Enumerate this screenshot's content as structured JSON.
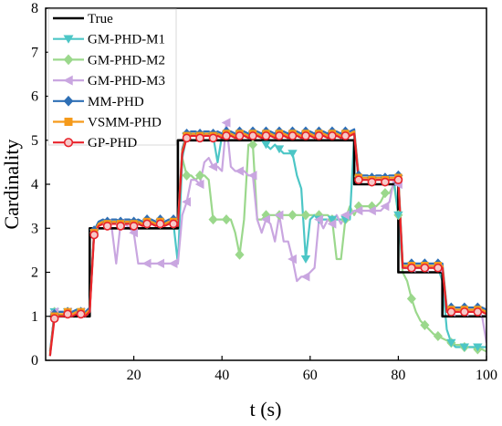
{
  "chart_data": {
    "type": "line",
    "xlabel": "t (s)",
    "ylabel": "Cardinality",
    "xlim": [
      0,
      100
    ],
    "ylim": [
      0,
      8
    ],
    "xticks": [
      20,
      40,
      60,
      80,
      100
    ],
    "yticks": [
      0,
      1,
      2,
      3,
      4,
      5,
      6,
      7,
      8
    ],
    "legend_position": "top-left",
    "series": [
      {
        "name": "True",
        "color": "#000000",
        "marker": "none",
        "x": [
          1,
          10,
          10,
          30,
          30,
          70,
          70,
          80,
          80,
          90,
          90,
          100
        ],
        "y": [
          1,
          1,
          3,
          3,
          5,
          5,
          4,
          4,
          2,
          2,
          1,
          1
        ]
      },
      {
        "name": "GM-PHD-M1",
        "color": "#4cc6c6",
        "marker": "triangle-down",
        "x": [
          1,
          2,
          3,
          4,
          5,
          6,
          7,
          8,
          9,
          10,
          11,
          12,
          13,
          14,
          15,
          16,
          17,
          18,
          19,
          20,
          21,
          22,
          23,
          24,
          25,
          26,
          27,
          28,
          29,
          30,
          31,
          32,
          33,
          34,
          35,
          36,
          37,
          38,
          39,
          40,
          41,
          42,
          43,
          44,
          45,
          46,
          47,
          48,
          49,
          50,
          51,
          52,
          53,
          54,
          55,
          56,
          57,
          58,
          59,
          60,
          61,
          62,
          63,
          64,
          65,
          66,
          67,
          68,
          69,
          70,
          71,
          72,
          73,
          74,
          75,
          76,
          77,
          78,
          79,
          80,
          81,
          82,
          83,
          84,
          85,
          86,
          87,
          88,
          89,
          90,
          91,
          92,
          93,
          94,
          95,
          96,
          97,
          98,
          99,
          100
        ],
        "y": [
          0.1,
          1.1,
          1.1,
          1.1,
          1.1,
          1.1,
          1.1,
          1.1,
          1.1,
          1.15,
          2.9,
          3.1,
          3.1,
          3.1,
          3.1,
          3.1,
          3.1,
          3.1,
          3.1,
          3.1,
          3.1,
          3.1,
          3.1,
          3.1,
          3.1,
          3.1,
          3.1,
          3.1,
          3.1,
          2.2,
          4.6,
          5.1,
          5.1,
          5.1,
          5.1,
          5.1,
          5.1,
          5.1,
          4.5,
          5.1,
          5.1,
          5.1,
          5.1,
          5.1,
          5.1,
          5.1,
          5.1,
          5.1,
          5.1,
          4.9,
          4.8,
          4.9,
          4.8,
          4.7,
          4.7,
          4.7,
          4.2,
          3.9,
          2.3,
          3.2,
          3.3,
          3.2,
          3.2,
          3.2,
          3.2,
          3.2,
          3.2,
          3.2,
          3.2,
          5.1,
          4.1,
          4.1,
          4.1,
          4.1,
          4.1,
          4.1,
          4.1,
          4.1,
          4.1,
          3.3,
          2.1,
          2.1,
          2.1,
          2.1,
          2.1,
          2.1,
          2.1,
          2.1,
          2.1,
          1.8,
          0.7,
          0.4,
          0.3,
          0.3,
          0.3,
          0.3,
          0.3,
          0.3,
          0.3,
          0.3
        ]
      },
      {
        "name": "GM-PHD-M2",
        "color": "#9bd88c",
        "marker": "diamond",
        "x": [
          1,
          2,
          3,
          4,
          5,
          6,
          7,
          8,
          9,
          10,
          11,
          12,
          13,
          14,
          15,
          16,
          17,
          18,
          19,
          20,
          21,
          22,
          23,
          24,
          25,
          26,
          27,
          28,
          29,
          30,
          31,
          32,
          33,
          34,
          35,
          36,
          37,
          38,
          39,
          40,
          41,
          42,
          43,
          44,
          45,
          46,
          47,
          48,
          49,
          50,
          51,
          52,
          53,
          54,
          55,
          56,
          57,
          58,
          59,
          60,
          61,
          62,
          63,
          64,
          65,
          66,
          67,
          68,
          69,
          70,
          71,
          72,
          73,
          74,
          75,
          76,
          77,
          78,
          79,
          80,
          81,
          82,
          83,
          84,
          85,
          86,
          87,
          88,
          89,
          90,
          91,
          92,
          93,
          94,
          95,
          96,
          97,
          98,
          99,
          100
        ],
        "y": [
          0.1,
          1.1,
          1.1,
          1.1,
          1.1,
          1.1,
          1.1,
          1.1,
          1.1,
          1.15,
          2.9,
          3.1,
          3.1,
          3.1,
          3.1,
          3.1,
          3.1,
          3.1,
          3.1,
          3.1,
          3.1,
          3.1,
          3.1,
          3.1,
          3.1,
          3.1,
          3.1,
          3.1,
          3.1,
          3.1,
          4.6,
          4.2,
          4.2,
          4.1,
          4.2,
          4.2,
          4.1,
          3.2,
          3.2,
          3.2,
          3.2,
          3.2,
          2.9,
          2.4,
          3.2,
          4.9,
          4.9,
          3.2,
          3.2,
          3.3,
          3.3,
          3.3,
          3.3,
          3.3,
          3.3,
          3.3,
          3.3,
          3.3,
          3.3,
          3.3,
          3.3,
          3.3,
          3.3,
          3.3,
          3.2,
          2.3,
          2.3,
          3.2,
          3.5,
          3.3,
          3.5,
          3.5,
          3.5,
          3.5,
          3.5,
          3.6,
          3.8,
          3.8,
          4.0,
          3.3,
          2.0,
          1.8,
          1.4,
          1.1,
          0.9,
          0.8,
          0.7,
          0.6,
          0.55,
          0.5,
          0.45,
          0.4,
          0.35,
          0.35,
          0.3,
          0.3,
          0.3,
          0.25,
          0.25,
          0.2
        ]
      },
      {
        "name": "GM-PHD-M3",
        "color": "#c9a6e0",
        "marker": "triangle-left",
        "x": [
          1,
          2,
          3,
          4,
          5,
          6,
          7,
          8,
          9,
          10,
          11,
          12,
          13,
          14,
          15,
          16,
          17,
          18,
          19,
          20,
          21,
          22,
          23,
          24,
          25,
          26,
          27,
          28,
          29,
          30,
          31,
          32,
          33,
          34,
          35,
          36,
          37,
          38,
          39,
          40,
          41,
          42,
          43,
          44,
          45,
          46,
          47,
          48,
          49,
          50,
          51,
          52,
          53,
          54,
          55,
          56,
          57,
          58,
          59,
          60,
          61,
          62,
          63,
          64,
          65,
          66,
          67,
          68,
          69,
          70,
          71,
          72,
          73,
          74,
          75,
          76,
          77,
          78,
          79,
          80,
          81,
          82,
          83,
          84,
          85,
          86,
          87,
          88,
          89,
          90,
          91,
          92,
          93,
          94,
          95,
          96,
          97,
          98,
          99,
          100
        ],
        "y": [
          0.1,
          1.1,
          1.1,
          1.1,
          1.1,
          1.1,
          1.1,
          1.1,
          1.1,
          1.15,
          2.9,
          3.1,
          3.1,
          3.1,
          3.0,
          2.2,
          3.1,
          3.1,
          3.0,
          2.9,
          2.2,
          2.2,
          2.2,
          2.2,
          2.2,
          2.2,
          2.2,
          2.2,
          2.2,
          2.2,
          3.3,
          3.6,
          4.1,
          4.1,
          4.0,
          4.5,
          4.6,
          4.4,
          4.4,
          4.3,
          5.4,
          4.4,
          4.3,
          4.3,
          4.3,
          4.2,
          4.2,
          3.2,
          2.9,
          3.2,
          3.1,
          2.7,
          3.3,
          2.7,
          2.7,
          2.3,
          1.8,
          1.9,
          1.9,
          2.0,
          2.1,
          3.2,
          3.0,
          3.2,
          3.1,
          3.3,
          3.1,
          3.3,
          3.3,
          3.4,
          3.4,
          3.4,
          3.4,
          3.4,
          3.4,
          3.4,
          3.5,
          3.6,
          4.1,
          4.0,
          2.1,
          2.1,
          2.1,
          2.1,
          2.1,
          2.1,
          2.1,
          2.1,
          2.1,
          2.0,
          1.2,
          1.1,
          1.1,
          1.1,
          1.1,
          1.1,
          1.1,
          1.1,
          1.0,
          0.4
        ]
      },
      {
        "name": "MM-PHD",
        "color": "#2e6fb5",
        "marker": "diamond",
        "x": [
          1,
          2,
          3,
          4,
          5,
          6,
          7,
          8,
          9,
          10,
          11,
          12,
          13,
          14,
          15,
          16,
          17,
          18,
          19,
          20,
          21,
          22,
          23,
          24,
          25,
          26,
          27,
          28,
          29,
          30,
          31,
          32,
          33,
          34,
          35,
          36,
          37,
          38,
          39,
          40,
          41,
          42,
          43,
          44,
          45,
          46,
          47,
          48,
          49,
          50,
          51,
          52,
          53,
          54,
          55,
          56,
          57,
          58,
          59,
          60,
          61,
          62,
          63,
          64,
          65,
          66,
          67,
          68,
          69,
          70,
          71,
          72,
          73,
          74,
          75,
          76,
          77,
          78,
          79,
          80,
          81,
          82,
          83,
          84,
          85,
          86,
          87,
          88,
          89,
          90,
          91,
          92,
          93,
          94,
          95,
          96,
          97,
          98,
          99,
          100
        ],
        "y": [
          0.2,
          1.05,
          1.1,
          1.1,
          1.1,
          1.1,
          1.15,
          1.1,
          1.1,
          1.2,
          2.95,
          3.15,
          3.2,
          3.15,
          3.2,
          3.2,
          3.15,
          3.2,
          3.2,
          3.15,
          3.2,
          3.15,
          3.2,
          3.2,
          3.15,
          3.2,
          3.15,
          3.2,
          3.2,
          3.15,
          4.8,
          5.15,
          5.2,
          5.2,
          5.15,
          5.2,
          5.2,
          5.15,
          5.2,
          5.15,
          5.2,
          5.2,
          5.15,
          5.2,
          5.2,
          5.15,
          5.2,
          5.2,
          5.15,
          5.2,
          5.2,
          5.15,
          5.2,
          5.2,
          5.15,
          5.2,
          5.2,
          5.15,
          5.2,
          5.2,
          5.15,
          5.2,
          5.2,
          5.15,
          5.2,
          5.2,
          5.15,
          5.2,
          5.2,
          5.25,
          4.2,
          4.2,
          4.2,
          4.15,
          4.2,
          4.2,
          4.15,
          4.2,
          4.2,
          4.2,
          2.2,
          2.2,
          2.2,
          2.2,
          2.2,
          2.2,
          2.2,
          2.2,
          2.2,
          2.2,
          1.2,
          1.2,
          1.2,
          1.2,
          1.2,
          1.2,
          1.2,
          1.2,
          1.2,
          1.15
        ]
      },
      {
        "name": "VSMM-PHD",
        "color": "#f59a1a",
        "marker": "square",
        "x": [
          1,
          2,
          3,
          4,
          5,
          6,
          7,
          8,
          9,
          10,
          11,
          12,
          13,
          14,
          15,
          16,
          17,
          18,
          19,
          20,
          21,
          22,
          23,
          24,
          25,
          26,
          27,
          28,
          29,
          30,
          31,
          32,
          33,
          34,
          35,
          36,
          37,
          38,
          39,
          40,
          41,
          42,
          43,
          44,
          45,
          46,
          47,
          48,
          49,
          50,
          51,
          52,
          53,
          54,
          55,
          56,
          57,
          58,
          59,
          60,
          61,
          62,
          63,
          64,
          65,
          66,
          67,
          68,
          69,
          70,
          71,
          72,
          73,
          74,
          75,
          76,
          77,
          78,
          79,
          80,
          81,
          82,
          83,
          84,
          85,
          86,
          87,
          88,
          89,
          90,
          91,
          92,
          93,
          94,
          95,
          96,
          97,
          98,
          99,
          100
        ],
        "y": [
          0.15,
          1.0,
          1.05,
          1.05,
          1.1,
          1.05,
          1.1,
          1.1,
          1.05,
          1.15,
          2.9,
          3.1,
          3.15,
          3.1,
          3.15,
          3.15,
          3.1,
          3.15,
          3.15,
          3.1,
          3.15,
          3.1,
          3.15,
          3.15,
          3.1,
          3.15,
          3.1,
          3.15,
          3.15,
          3.1,
          4.75,
          5.1,
          5.15,
          5.15,
          5.1,
          5.15,
          5.15,
          5.1,
          5.15,
          5.1,
          5.15,
          5.15,
          5.1,
          5.15,
          5.15,
          5.1,
          5.15,
          5.15,
          5.1,
          5.15,
          5.15,
          5.1,
          5.15,
          5.15,
          5.1,
          5.15,
          5.15,
          5.1,
          5.15,
          5.15,
          5.1,
          5.15,
          5.15,
          5.1,
          5.15,
          5.15,
          5.1,
          5.15,
          5.15,
          5.2,
          4.15,
          4.15,
          4.15,
          4.1,
          4.15,
          4.15,
          4.1,
          4.15,
          4.15,
          4.15,
          2.15,
          2.15,
          2.15,
          2.15,
          2.15,
          2.15,
          2.15,
          2.15,
          2.15,
          2.15,
          1.15,
          1.15,
          1.15,
          1.15,
          1.15,
          1.15,
          1.15,
          1.15,
          1.15,
          1.1
        ]
      },
      {
        "name": "GP-PHD",
        "color": "#e8232b",
        "marker": "circle",
        "x": [
          1,
          2,
          3,
          4,
          5,
          6,
          7,
          8,
          9,
          10,
          11,
          12,
          13,
          14,
          15,
          16,
          17,
          18,
          19,
          20,
          21,
          22,
          23,
          24,
          25,
          26,
          27,
          28,
          29,
          30,
          31,
          32,
          33,
          34,
          35,
          36,
          37,
          38,
          39,
          40,
          41,
          42,
          43,
          44,
          45,
          46,
          47,
          48,
          49,
          50,
          51,
          52,
          53,
          54,
          55,
          56,
          57,
          58,
          59,
          60,
          61,
          62,
          63,
          64,
          65,
          66,
          67,
          68,
          69,
          70,
          71,
          72,
          73,
          74,
          75,
          76,
          77,
          78,
          79,
          80,
          81,
          82,
          83,
          84,
          85,
          86,
          87,
          88,
          89,
          90,
          91,
          92,
          93,
          94,
          95,
          96,
          97,
          98,
          99,
          100
        ],
        "y": [
          0.1,
          0.95,
          1.0,
          1.0,
          1.05,
          1.0,
          1.05,
          1.05,
          1.0,
          1.1,
          2.85,
          3.05,
          3.1,
          3.05,
          3.1,
          3.1,
          3.05,
          3.1,
          3.1,
          3.05,
          3.1,
          3.05,
          3.1,
          3.1,
          3.05,
          3.1,
          3.05,
          3.1,
          3.1,
          3.05,
          4.7,
          5.05,
          5.1,
          5.1,
          5.05,
          5.1,
          5.1,
          5.05,
          5.1,
          5.05,
          5.1,
          5.1,
          5.05,
          5.1,
          5.1,
          5.05,
          5.1,
          5.1,
          5.05,
          5.1,
          5.1,
          5.05,
          5.1,
          5.1,
          5.05,
          5.1,
          5.1,
          5.05,
          5.1,
          5.1,
          5.05,
          5.1,
          5.1,
          5.05,
          5.1,
          5.1,
          5.05,
          5.1,
          5.1,
          5.15,
          4.1,
          4.1,
          4.1,
          4.05,
          4.1,
          4.1,
          4.05,
          4.1,
          4.1,
          4.1,
          2.1,
          2.1,
          2.1,
          2.1,
          2.1,
          2.1,
          2.1,
          2.1,
          2.1,
          2.1,
          1.1,
          1.1,
          1.1,
          1.1,
          1.1,
          1.1,
          1.1,
          1.1,
          1.1,
          1.05
        ]
      }
    ]
  }
}
